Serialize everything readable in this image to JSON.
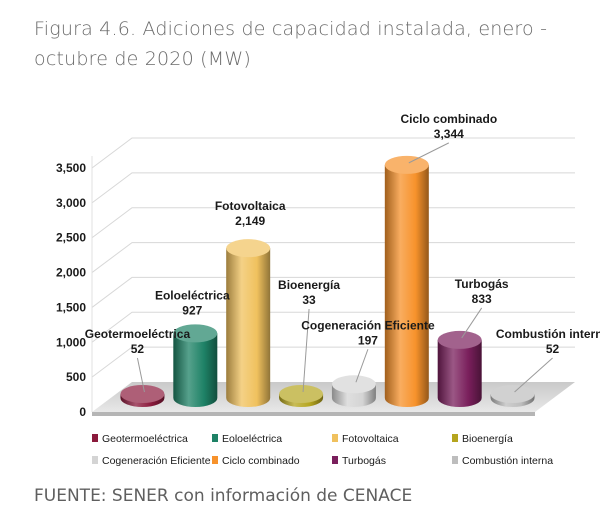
{
  "header": {
    "title": "Figura 4.6. Adiciones de capacidad instalada, enero - octubre de 2020 (MW)"
  },
  "footer": {
    "source": "FUENTE: SENER con información de CENACE"
  },
  "chart_data": {
    "type": "bar",
    "title": "",
    "xlabel": "",
    "ylabel": "",
    "ylim": [
      0,
      3500
    ],
    "yticks": [
      "0",
      "500",
      "1,000",
      "1,500",
      "2,000",
      "2,500",
      "3,000",
      "3,500"
    ],
    "grid": true,
    "legend_position": "bottom",
    "categories": [
      "Geotermoeléctrica",
      "Eoloeléctrica",
      "Fotovoltaica",
      "Bioenergía",
      "Cogeneración Eficiente",
      "Ciclo combinado",
      "Turbogás",
      "Combustión interna"
    ],
    "values": [
      52,
      927,
      2149,
      33,
      197,
      3344,
      833,
      52
    ],
    "value_labels": [
      "52",
      "927",
      "2,149",
      "33",
      "197",
      "3,344",
      "833",
      "52"
    ],
    "colors": [
      "#8b1a3c",
      "#1e8266",
      "#f0c15e",
      "#b5a51f",
      "#d4d4d4",
      "#f7922b",
      "#7a1f5c",
      "#bdbdbd"
    ]
  }
}
